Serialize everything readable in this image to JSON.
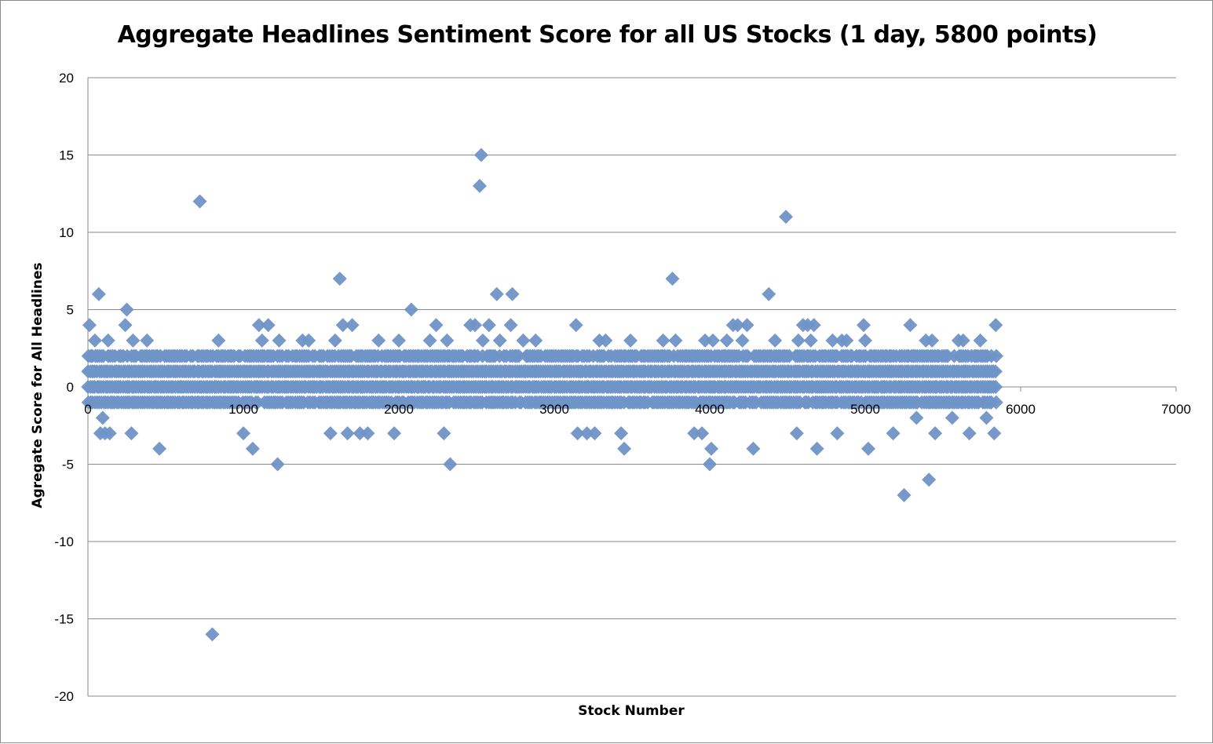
{
  "chart_data": {
    "type": "scatter",
    "title": "Aggregate Headlines Sentiment Score for all US Stocks (1 day, 5800 points)",
    "xlabel": "Stock Number",
    "ylabel": "Agregate Score for All Headlines",
    "xlim": [
      0,
      7000
    ],
    "ylim": [
      -20,
      20
    ],
    "x_ticks": [
      "0",
      "1000",
      "2000",
      "3000",
      "4000",
      "5000",
      "6000",
      "7000"
    ],
    "y_ticks": [
      "20",
      "15",
      "10",
      "5",
      "0",
      "-5",
      "-10",
      "-15",
      "-20"
    ],
    "grid": "horizontal",
    "legend": "none",
    "marker": "diamond",
    "marker_color": "#6f93c7",
    "series": [
      {
        "dense_band": {
          "x_range": [
            0,
            5850
          ],
          "y_levels": [
            -1,
            0,
            1,
            2
          ]
        },
        "points": [
          {
            "x": 10,
            "y": 4
          },
          {
            "x": 20,
            "y": 2
          },
          {
            "x": 30,
            "y": 1
          },
          {
            "x": 45,
            "y": 3
          },
          {
            "x": 70,
            "y": 6
          },
          {
            "x": 80,
            "y": -3
          },
          {
            "x": 95,
            "y": -2
          },
          {
            "x": 110,
            "y": -3
          },
          {
            "x": 130,
            "y": 3
          },
          {
            "x": 140,
            "y": -3
          },
          {
            "x": 240,
            "y": 4
          },
          {
            "x": 250,
            "y": 5
          },
          {
            "x": 280,
            "y": -3
          },
          {
            "x": 290,
            "y": 3
          },
          {
            "x": 380,
            "y": 3
          },
          {
            "x": 460,
            "y": -4
          },
          {
            "x": 720,
            "y": 12
          },
          {
            "x": 800,
            "y": -16
          },
          {
            "x": 840,
            "y": 3
          },
          {
            "x": 1000,
            "y": -3
          },
          {
            "x": 1060,
            "y": -4
          },
          {
            "x": 1100,
            "y": 4
          },
          {
            "x": 1120,
            "y": 3
          },
          {
            "x": 1160,
            "y": 4
          },
          {
            "x": 1220,
            "y": -5
          },
          {
            "x": 1230,
            "y": 3
          },
          {
            "x": 1380,
            "y": 3
          },
          {
            "x": 1420,
            "y": 3
          },
          {
            "x": 1560,
            "y": -3
          },
          {
            "x": 1590,
            "y": 3
          },
          {
            "x": 1620,
            "y": 7
          },
          {
            "x": 1640,
            "y": 4
          },
          {
            "x": 1670,
            "y": -3
          },
          {
            "x": 1700,
            "y": 4
          },
          {
            "x": 1750,
            "y": -3
          },
          {
            "x": 1800,
            "y": -3
          },
          {
            "x": 1870,
            "y": 3
          },
          {
            "x": 1970,
            "y": -3
          },
          {
            "x": 2000,
            "y": 3
          },
          {
            "x": 2080,
            "y": 5
          },
          {
            "x": 2200,
            "y": 3
          },
          {
            "x": 2240,
            "y": 4
          },
          {
            "x": 2290,
            "y": -3
          },
          {
            "x": 2310,
            "y": 3
          },
          {
            "x": 2330,
            "y": -5
          },
          {
            "x": 2460,
            "y": 4
          },
          {
            "x": 2490,
            "y": 4
          },
          {
            "x": 2520,
            "y": 13
          },
          {
            "x": 2530,
            "y": 15
          },
          {
            "x": 2540,
            "y": 3
          },
          {
            "x": 2580,
            "y": 4
          },
          {
            "x": 2630,
            "y": 6
          },
          {
            "x": 2650,
            "y": 3
          },
          {
            "x": 2720,
            "y": 4
          },
          {
            "x": 2730,
            "y": 6
          },
          {
            "x": 2800,
            "y": 3
          },
          {
            "x": 2880,
            "y": 3
          },
          {
            "x": 3140,
            "y": 4
          },
          {
            "x": 3150,
            "y": -3
          },
          {
            "x": 3210,
            "y": -3
          },
          {
            "x": 3260,
            "y": -3
          },
          {
            "x": 3290,
            "y": 3
          },
          {
            "x": 3330,
            "y": 3
          },
          {
            "x": 3430,
            "y": -3
          },
          {
            "x": 3450,
            "y": -4
          },
          {
            "x": 3490,
            "y": 3
          },
          {
            "x": 3700,
            "y": 3
          },
          {
            "x": 3760,
            "y": 7
          },
          {
            "x": 3780,
            "y": 3
          },
          {
            "x": 3900,
            "y": -3
          },
          {
            "x": 3950,
            "y": -3
          },
          {
            "x": 3970,
            "y": 3
          },
          {
            "x": 4000,
            "y": -5
          },
          {
            "x": 4010,
            "y": -4
          },
          {
            "x": 4020,
            "y": 3
          },
          {
            "x": 4110,
            "y": 3
          },
          {
            "x": 4150,
            "y": 4
          },
          {
            "x": 4180,
            "y": 4
          },
          {
            "x": 4210,
            "y": 3
          },
          {
            "x": 4240,
            "y": 4
          },
          {
            "x": 4280,
            "y": -4
          },
          {
            "x": 4380,
            "y": 6
          },
          {
            "x": 4420,
            "y": 3
          },
          {
            "x": 4490,
            "y": 11
          },
          {
            "x": 4560,
            "y": -3
          },
          {
            "x": 4570,
            "y": 3
          },
          {
            "x": 4600,
            "y": 4
          },
          {
            "x": 4630,
            "y": 4
          },
          {
            "x": 4650,
            "y": 3
          },
          {
            "x": 4670,
            "y": 4
          },
          {
            "x": 4690,
            "y": -4
          },
          {
            "x": 4790,
            "y": 3
          },
          {
            "x": 4820,
            "y": -3
          },
          {
            "x": 4850,
            "y": 3
          },
          {
            "x": 4880,
            "y": 3
          },
          {
            "x": 4990,
            "y": 4
          },
          {
            "x": 5000,
            "y": 3
          },
          {
            "x": 5020,
            "y": -4
          },
          {
            "x": 5180,
            "y": -3
          },
          {
            "x": 5250,
            "y": -7
          },
          {
            "x": 5290,
            "y": 4
          },
          {
            "x": 5330,
            "y": -2
          },
          {
            "x": 5390,
            "y": 3
          },
          {
            "x": 5410,
            "y": -6
          },
          {
            "x": 5430,
            "y": 3
          },
          {
            "x": 5450,
            "y": -3
          },
          {
            "x": 5560,
            "y": -2
          },
          {
            "x": 5600,
            "y": 3
          },
          {
            "x": 5630,
            "y": 3
          },
          {
            "x": 5670,
            "y": -3
          },
          {
            "x": 5740,
            "y": 3
          },
          {
            "x": 5780,
            "y": -2
          },
          {
            "x": 5830,
            "y": -3
          },
          {
            "x": 5840,
            "y": 4
          }
        ]
      }
    ]
  }
}
